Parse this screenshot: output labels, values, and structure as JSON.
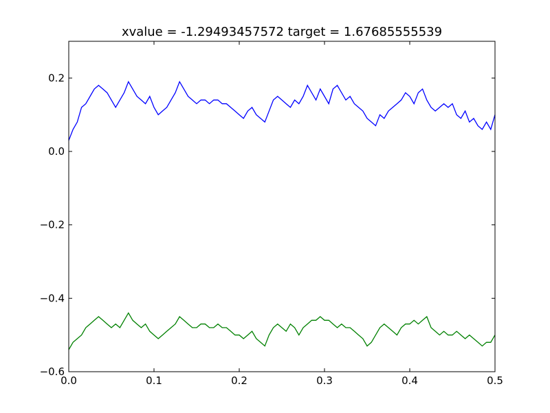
{
  "chart_data": {
    "type": "line",
    "title": "xvalue = -1.29493457572 target = 1.67685555539",
    "xlabel": "",
    "ylabel": "",
    "xlim": [
      0.0,
      0.5
    ],
    "ylim": [
      -0.6,
      0.3
    ],
    "x_ticks": [
      0.0,
      0.1,
      0.2,
      0.3,
      0.4,
      0.5
    ],
    "x_tick_labels": [
      "0.0",
      "0.1",
      "0.2",
      "0.3",
      "0.4",
      "0.5"
    ],
    "y_ticks": [
      -0.6,
      -0.4,
      -0.2,
      0.0,
      0.2
    ],
    "y_tick_labels": [
      "−0.6",
      "−0.4",
      "−0.2",
      "0.0",
      "0.2"
    ],
    "grid": false,
    "legend": "none",
    "series": [
      {
        "color": "#0000ff",
        "x": [
          0.0,
          0.005,
          0.01,
          0.015,
          0.02,
          0.025,
          0.03,
          0.035,
          0.04,
          0.045,
          0.05,
          0.055,
          0.06,
          0.065,
          0.07,
          0.075,
          0.08,
          0.085,
          0.09,
          0.095,
          0.1,
          0.105,
          0.11,
          0.115,
          0.12,
          0.125,
          0.13,
          0.135,
          0.14,
          0.145,
          0.15,
          0.155,
          0.16,
          0.165,
          0.17,
          0.175,
          0.18,
          0.185,
          0.19,
          0.195,
          0.2,
          0.205,
          0.21,
          0.215,
          0.22,
          0.225,
          0.23,
          0.235,
          0.24,
          0.245,
          0.25,
          0.255,
          0.26,
          0.265,
          0.27,
          0.275,
          0.28,
          0.285,
          0.29,
          0.295,
          0.3,
          0.305,
          0.31,
          0.315,
          0.32,
          0.325,
          0.33,
          0.335,
          0.34,
          0.345,
          0.35,
          0.355,
          0.36,
          0.365,
          0.37,
          0.375,
          0.38,
          0.385,
          0.39,
          0.395,
          0.4,
          0.405,
          0.41,
          0.415,
          0.42,
          0.425,
          0.43,
          0.435,
          0.44,
          0.445,
          0.45,
          0.455,
          0.46,
          0.465,
          0.47,
          0.475,
          0.48,
          0.485,
          0.49,
          0.495,
          0.5
        ],
        "y": [
          0.03,
          0.06,
          0.08,
          0.12,
          0.13,
          0.15,
          0.17,
          0.18,
          0.17,
          0.16,
          0.14,
          0.12,
          0.14,
          0.16,
          0.19,
          0.17,
          0.15,
          0.14,
          0.13,
          0.15,
          0.12,
          0.1,
          0.11,
          0.12,
          0.14,
          0.16,
          0.19,
          0.17,
          0.15,
          0.14,
          0.13,
          0.14,
          0.14,
          0.13,
          0.14,
          0.14,
          0.13,
          0.13,
          0.12,
          0.11,
          0.1,
          0.09,
          0.11,
          0.12,
          0.1,
          0.09,
          0.08,
          0.11,
          0.14,
          0.15,
          0.14,
          0.13,
          0.12,
          0.14,
          0.13,
          0.15,
          0.18,
          0.16,
          0.14,
          0.17,
          0.15,
          0.13,
          0.17,
          0.18,
          0.16,
          0.14,
          0.15,
          0.13,
          0.12,
          0.11,
          0.09,
          0.08,
          0.07,
          0.1,
          0.09,
          0.11,
          0.12,
          0.13,
          0.14,
          0.16,
          0.15,
          0.13,
          0.16,
          0.17,
          0.14,
          0.12,
          0.11,
          0.12,
          0.13,
          0.12,
          0.13,
          0.1,
          0.09,
          0.11,
          0.08,
          0.09,
          0.07,
          0.06,
          0.08,
          0.06,
          0.1
        ]
      },
      {
        "color": "#008000",
        "x": [
          0.0,
          0.005,
          0.01,
          0.015,
          0.02,
          0.025,
          0.03,
          0.035,
          0.04,
          0.045,
          0.05,
          0.055,
          0.06,
          0.065,
          0.07,
          0.075,
          0.08,
          0.085,
          0.09,
          0.095,
          0.1,
          0.105,
          0.11,
          0.115,
          0.12,
          0.125,
          0.13,
          0.135,
          0.14,
          0.145,
          0.15,
          0.155,
          0.16,
          0.165,
          0.17,
          0.175,
          0.18,
          0.185,
          0.19,
          0.195,
          0.2,
          0.205,
          0.21,
          0.215,
          0.22,
          0.225,
          0.23,
          0.235,
          0.24,
          0.245,
          0.25,
          0.255,
          0.26,
          0.265,
          0.27,
          0.275,
          0.28,
          0.285,
          0.29,
          0.295,
          0.3,
          0.305,
          0.31,
          0.315,
          0.32,
          0.325,
          0.33,
          0.335,
          0.34,
          0.345,
          0.35,
          0.355,
          0.36,
          0.365,
          0.37,
          0.375,
          0.38,
          0.385,
          0.39,
          0.395,
          0.4,
          0.405,
          0.41,
          0.415,
          0.42,
          0.425,
          0.43,
          0.435,
          0.44,
          0.445,
          0.45,
          0.455,
          0.46,
          0.465,
          0.47,
          0.475,
          0.48,
          0.485,
          0.49,
          0.495,
          0.5
        ],
        "y": [
          -0.54,
          -0.52,
          -0.51,
          -0.5,
          -0.48,
          -0.47,
          -0.46,
          -0.45,
          -0.46,
          -0.47,
          -0.48,
          -0.47,
          -0.48,
          -0.46,
          -0.44,
          -0.46,
          -0.47,
          -0.48,
          -0.47,
          -0.49,
          -0.5,
          -0.51,
          -0.5,
          -0.49,
          -0.48,
          -0.47,
          -0.45,
          -0.46,
          -0.47,
          -0.48,
          -0.48,
          -0.47,
          -0.47,
          -0.48,
          -0.48,
          -0.47,
          -0.48,
          -0.48,
          -0.49,
          -0.5,
          -0.5,
          -0.51,
          -0.5,
          -0.49,
          -0.51,
          -0.52,
          -0.53,
          -0.5,
          -0.48,
          -0.47,
          -0.48,
          -0.49,
          -0.47,
          -0.48,
          -0.5,
          -0.48,
          -0.47,
          -0.46,
          -0.46,
          -0.45,
          -0.46,
          -0.46,
          -0.47,
          -0.48,
          -0.47,
          -0.48,
          -0.48,
          -0.49,
          -0.5,
          -0.51,
          -0.53,
          -0.52,
          -0.5,
          -0.48,
          -0.47,
          -0.48,
          -0.49,
          -0.5,
          -0.48,
          -0.47,
          -0.47,
          -0.46,
          -0.47,
          -0.46,
          -0.45,
          -0.48,
          -0.49,
          -0.5,
          -0.49,
          -0.5,
          -0.5,
          -0.49,
          -0.5,
          -0.51,
          -0.5,
          -0.51,
          -0.52,
          -0.53,
          -0.52,
          -0.52,
          -0.5
        ]
      }
    ]
  }
}
